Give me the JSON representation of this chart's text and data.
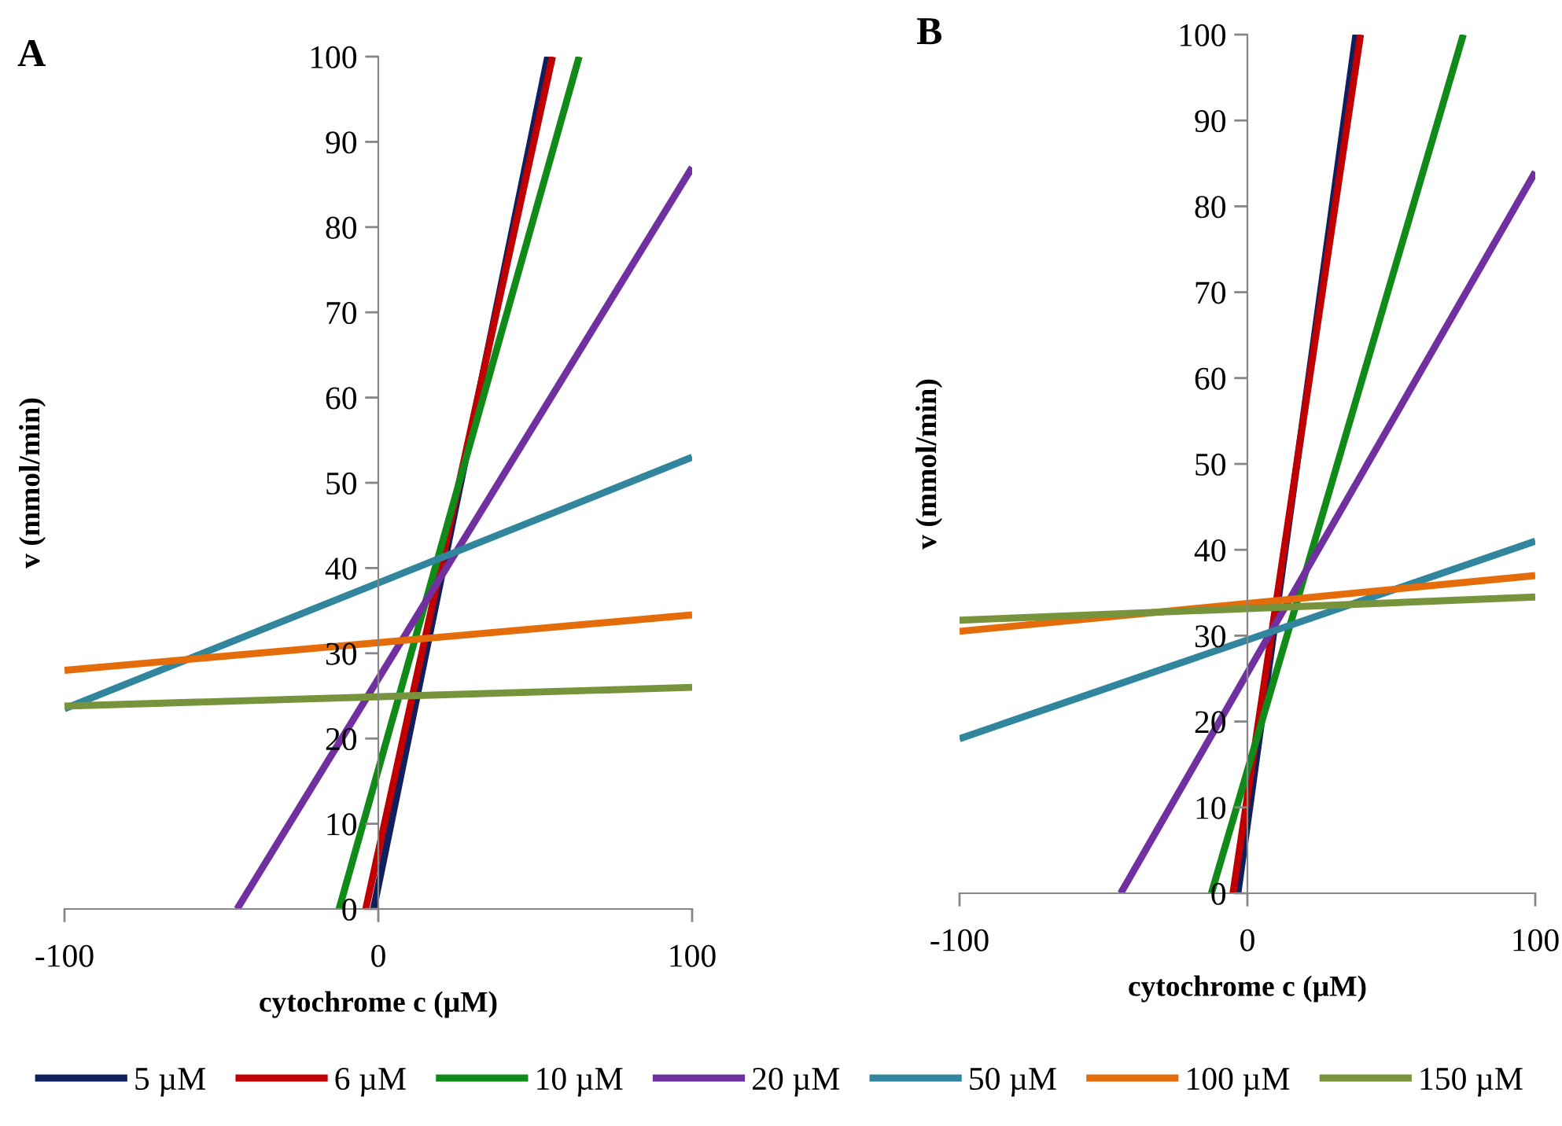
{
  "chart_data": [
    {
      "type": "line",
      "title": "A",
      "xlabel": "cytochrome c (µM)",
      "ylabel": "v (mmol/min)",
      "xlim": [
        -100,
        100
      ],
      "xticks": [
        -100,
        0,
        100
      ],
      "ylim": [
        0,
        100
      ],
      "yticks": [
        0,
        10,
        20,
        30,
        40,
        50,
        60,
        70,
        80,
        90,
        100
      ],
      "grid": false,
      "legend": "bottom",
      "marker": "none",
      "line_style": "solid",
      "series": [
        {
          "name": "5 µM",
          "color": "#10205e",
          "x": [
            -1.5,
            54
          ],
          "values": [
            0,
            100
          ]
        },
        {
          "name": "6 µM",
          "color": "#c00000",
          "x": [
            -4,
            55.5
          ],
          "values": [
            0,
            100
          ]
        },
        {
          "name": "10 µM",
          "color": "#118a1a",
          "x": [
            -12.5,
            64
          ],
          "values": [
            0,
            100
          ]
        },
        {
          "name": "20 µM",
          "color": "#7030a0",
          "x": [
            -45,
            100
          ],
          "values": [
            0,
            87
          ]
        },
        {
          "name": "50 µM",
          "color": "#31859c",
          "x": [
            -100,
            100
          ],
          "values": [
            23.5,
            53
          ]
        },
        {
          "name": "100 µM",
          "color": "#e46c0a",
          "x": [
            -100,
            100
          ],
          "values": [
            28,
            34.5
          ]
        },
        {
          "name": "150 µM",
          "color": "#77933c",
          "x": [
            -100,
            100
          ],
          "values": [
            23.8,
            26
          ]
        }
      ]
    },
    {
      "type": "line",
      "title": "B",
      "xlabel": "cytochrome c (µM)",
      "ylabel": "v (mmol/min)",
      "xlim": [
        -100,
        100
      ],
      "xticks": [
        -100,
        0,
        100
      ],
      "ylim": [
        0,
        100
      ],
      "yticks": [
        0,
        10,
        20,
        30,
        40,
        50,
        60,
        70,
        80,
        90,
        100
      ],
      "grid": false,
      "marker": "none",
      "line_style": "solid",
      "series": [
        {
          "color": "#10205e",
          "x": [
            -3.3,
            37.7
          ],
          "values": [
            0,
            100
          ]
        },
        {
          "color": "#c00000",
          "x": [
            -5,
            39.3
          ],
          "values": [
            0,
            100
          ]
        },
        {
          "color": "#118a1a",
          "x": [
            -12.5,
            75
          ],
          "values": [
            0,
            100
          ]
        },
        {
          "color": "#7030a0",
          "x": [
            -44,
            100
          ],
          "values": [
            0,
            84
          ]
        },
        {
          "color": "#31859c",
          "x": [
            -100,
            100
          ],
          "values": [
            18,
            41
          ]
        },
        {
          "color": "#e46c0a",
          "x": [
            -100,
            100
          ],
          "values": [
            30.5,
            37
          ]
        },
        {
          "color": "#77933c",
          "x": [
            -100,
            100
          ],
          "values": [
            31.8,
            34.5
          ]
        }
      ]
    }
  ]
}
